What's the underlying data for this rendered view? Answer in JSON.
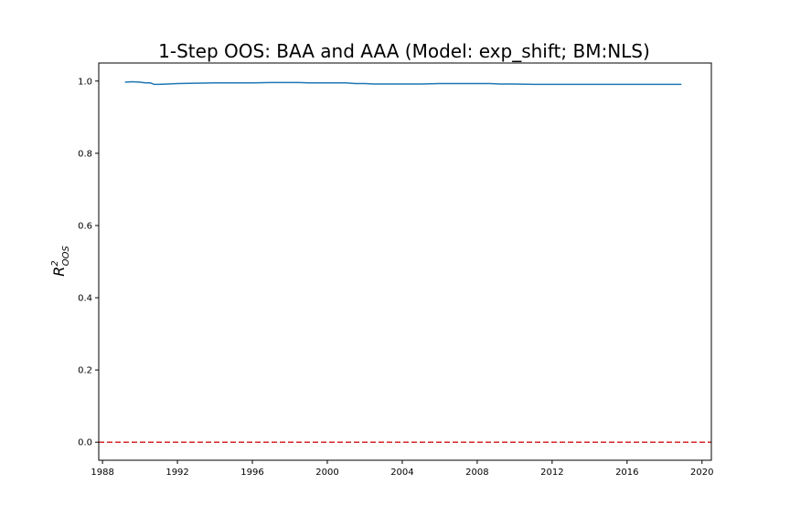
{
  "chart_data": {
    "type": "line",
    "title": "1-Step OOS: BAA and AAA (Model: exp_shift; BM:NLS)",
    "ylabel": {
      "base": "R",
      "superscript": "2",
      "subscript": "OOS"
    },
    "xlabel": "",
    "xlim": [
      1987.8,
      2020.5
    ],
    "ylim": [
      -0.05,
      1.05
    ],
    "xticks": [
      1988,
      1992,
      1996,
      2000,
      2004,
      2008,
      2012,
      2016,
      2020
    ],
    "xtick_labels": [
      "1988",
      "1992",
      "1996",
      "2000",
      "2004",
      "2008",
      "2012",
      "2016",
      "2020"
    ],
    "yticks": [
      0.0,
      0.2,
      0.4,
      0.6,
      0.8,
      1.0
    ],
    "ytick_labels": [
      "0.0",
      "0.2",
      "0.4",
      "0.6",
      "0.8",
      "1.0"
    ],
    "grid": false,
    "series": [
      {
        "color": "#1f77b4",
        "x": [
          1989.2,
          1989.6,
          1990.0,
          1990.3,
          1990.55,
          1990.75,
          1991.0,
          1991.5,
          1992.0,
          1993.0,
          1994.0,
          1995.0,
          1996.0,
          1997.0,
          1998.0,
          1998.5,
          1999.0,
          2000.0,
          2001.0,
          2001.5,
          2002.0,
          2002.5,
          2003.0,
          2004.0,
          2005.0,
          2006.0,
          2007.0,
          2008.0,
          2008.7,
          2009.2,
          2010.0,
          2011.0,
          2012.0,
          2013.0,
          2014.0,
          2015.0,
          2016.0,
          2017.0,
          2018.0,
          2018.9
        ],
        "y": [
          0.997,
          0.998,
          0.997,
          0.995,
          0.995,
          0.991,
          0.991,
          0.992,
          0.993,
          0.994,
          0.995,
          0.995,
          0.995,
          0.996,
          0.996,
          0.996,
          0.995,
          0.995,
          0.995,
          0.993,
          0.993,
          0.992,
          0.992,
          0.992,
          0.992,
          0.993,
          0.993,
          0.993,
          0.993,
          0.992,
          0.992,
          0.991,
          0.991,
          0.991,
          0.991,
          0.991,
          0.991,
          0.991,
          0.991,
          0.991
        ]
      }
    ],
    "reference_lines": [
      {
        "orientation": "horizontal",
        "y": 0.0,
        "color": "#d62728",
        "style": "dashed"
      }
    ]
  }
}
